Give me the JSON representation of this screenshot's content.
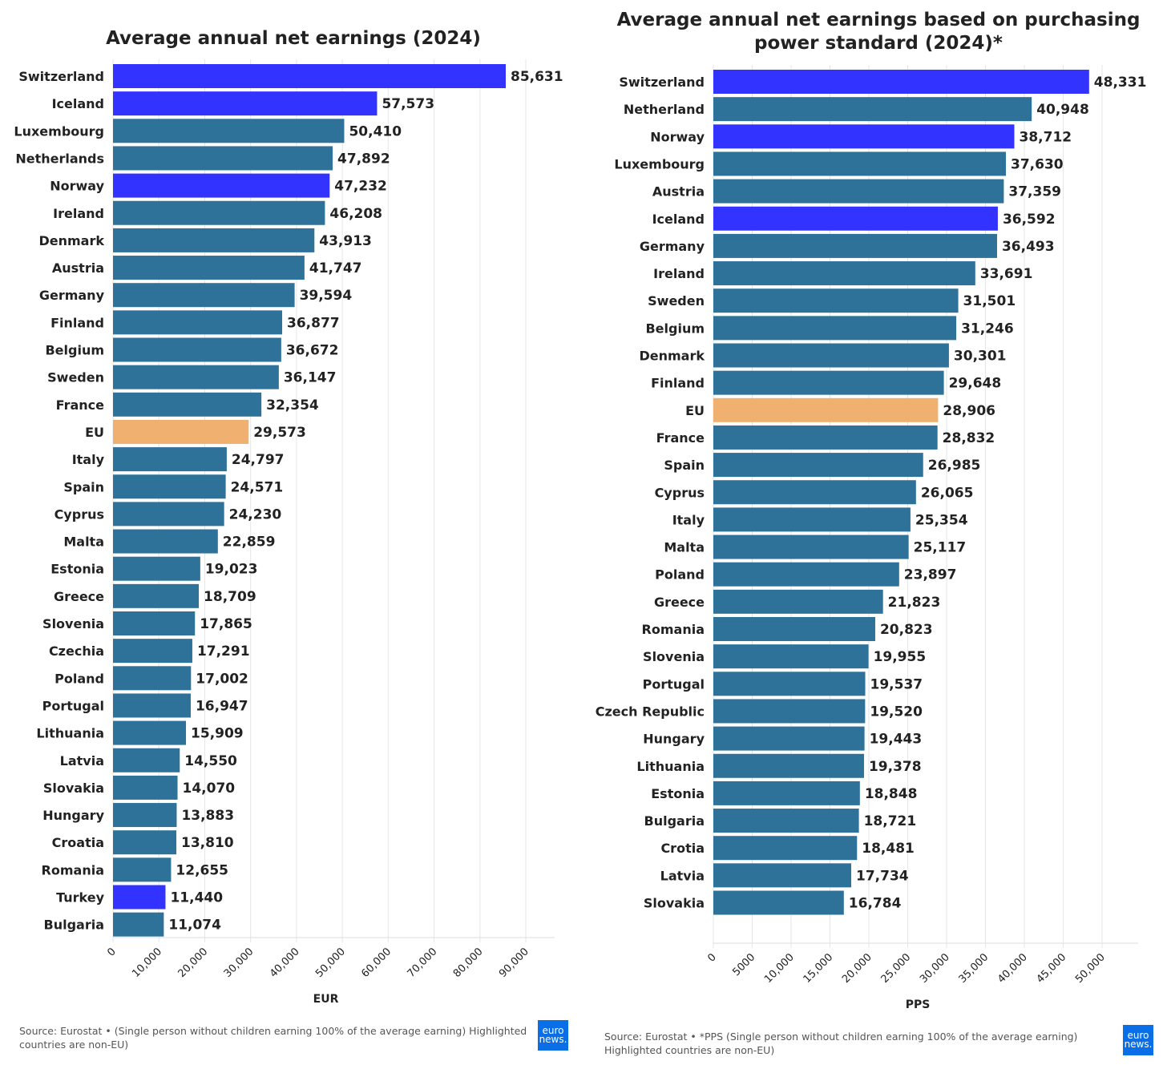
{
  "colors": {
    "default": "#2e7199",
    "non_eu": "#3333ff",
    "eu": "#efb070",
    "grid": "#e6e6e6"
  },
  "logo": {
    "line1": "euro",
    "line2": "news."
  },
  "chart_data": [
    {
      "type": "bar",
      "orientation": "horizontal",
      "title": "Average annual net earnings (2024)",
      "xlabel": "EUR",
      "xlim": [
        0,
        90000
      ],
      "ticks": [
        "0",
        "10,000",
        "20,000",
        "30,000",
        "40,000",
        "50,000",
        "60,000",
        "70,000",
        "80,000",
        "90,000"
      ],
      "categories": [
        "Switzerland",
        "Iceland",
        "Luxembourg",
        "Netherlands",
        "Norway",
        "Ireland",
        "Denmark",
        "Austria",
        "Germany",
        "Finland",
        "Belgium",
        "Sweden",
        "France",
        "EU",
        "Italy",
        "Spain",
        "Cyprus",
        "Malta",
        "Estonia",
        "Greece",
        "Slovenia",
        "Czechia",
        "Poland",
        "Portugal",
        "Lithuania",
        "Latvia",
        "Slovakia",
        "Hungary",
        "Croatia",
        "Romania",
        "Turkey",
        "Bulgaria"
      ],
      "values": [
        85631,
        57573,
        50410,
        47892,
        47232,
        46208,
        43913,
        41747,
        39594,
        36877,
        36672,
        36147,
        32354,
        29573,
        24797,
        24571,
        24230,
        22859,
        19023,
        18709,
        17865,
        17291,
        17002,
        16947,
        15909,
        14550,
        14070,
        13883,
        13810,
        12655,
        11440,
        11074
      ],
      "labels": [
        "85,631",
        "57,573",
        "50,410",
        "47,892",
        "47,232",
        "46,208",
        "43,913",
        "41,747",
        "39,594",
        "36,877",
        "36,672",
        "36,147",
        "32,354",
        "29,573",
        "24,797",
        "24,571",
        "24,230",
        "22,859",
        "19,023",
        "18,709",
        "17,865",
        "17,291",
        "17,002",
        "16,947",
        "15,909",
        "14,550",
        "14,070",
        "13,883",
        "13,810",
        "12,655",
        "11,440",
        "11,074"
      ],
      "highlight": {
        "non_eu": [
          "Switzerland",
          "Iceland",
          "Norway",
          "Turkey"
        ],
        "eu": [
          "EU"
        ]
      },
      "source": "Source: Eurostat • (Single person without children earning 100% of the average earning) Highlighted countries are non-EU)"
    },
    {
      "type": "bar",
      "orientation": "horizontal",
      "title": "Average annual net earnings based on purchasing power standard (2024)*",
      "title_lines": [
        "Average annual net earnings based on purchasing",
        "power standard (2024)*"
      ],
      "xlabel": "PPS",
      "xlim": [
        0,
        50000
      ],
      "ticks": [
        "0",
        "5000",
        "10,000",
        "15,000",
        "20,000",
        "25,000",
        "30,000",
        "35,000",
        "40,000",
        "45,000",
        "50,000"
      ],
      "categories": [
        "Switzerland",
        "Netherland",
        "Norway",
        "Luxembourg",
        "Austria",
        "Iceland",
        "Germany",
        "Ireland",
        "Sweden",
        "Belgium",
        "Denmark",
        "Finland",
        "EU",
        "France",
        "Spain",
        "Cyprus",
        "Italy",
        "Malta",
        "Poland",
        "Greece",
        "Romania",
        "Slovenia",
        "Portugal",
        "Czech Republic",
        "Hungary",
        "Lithuania",
        "Estonia",
        "Bulgaria",
        "Crotia",
        "Latvia",
        "Slovakia"
      ],
      "values": [
        48331,
        40948,
        38712,
        37630,
        37359,
        36592,
        36493,
        33691,
        31501,
        31246,
        30301,
        29648,
        28906,
        28832,
        26985,
        26065,
        25354,
        25117,
        23897,
        21823,
        20823,
        19955,
        19537,
        19520,
        19443,
        19378,
        18848,
        18721,
        18481,
        17734,
        16784
      ],
      "labels": [
        "48,331",
        "40,948",
        "38,712",
        "37,630",
        "37,359",
        "36,592",
        "36,493",
        "33,691",
        "31,501",
        "31,246",
        "30,301",
        "29,648",
        "28,906",
        "28,832",
        "26,985",
        "26,065",
        "25,354",
        "25,117",
        "23,897",
        "21,823",
        "20,823",
        "19,955",
        "19,537",
        "19,520",
        "19,443",
        "19,378",
        "18,848",
        "18,721",
        "18,481",
        "17,734",
        "16,784"
      ],
      "highlight": {
        "non_eu": [
          "Switzerland",
          "Norway",
          "Iceland"
        ],
        "eu": [
          "EU"
        ]
      },
      "source": "Source: Eurostat • *PPS (Single person without children earning 100% of the average earning) Highlighted countries are non-EU)"
    }
  ]
}
